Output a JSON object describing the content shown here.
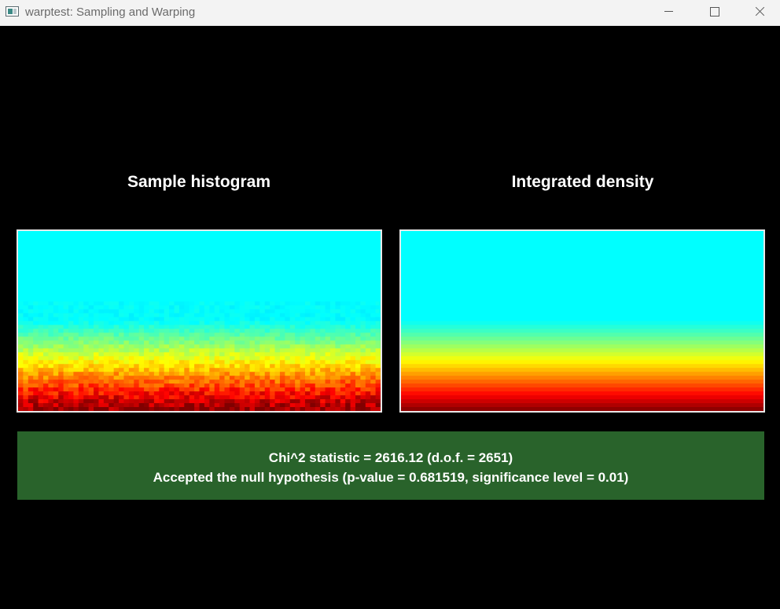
{
  "window": {
    "title": "warptest: Sampling and Warping",
    "controls": {
      "minimize_icon": "minimize-icon",
      "maximize_icon": "maximize-icon",
      "close_icon": "close-icon"
    }
  },
  "panels": {
    "left": {
      "title": "Sample histogram",
      "noisy": true
    },
    "right": {
      "title": "Integrated density",
      "noisy": false
    }
  },
  "colormap": {
    "low": "#0000ff",
    "stops": [
      "#0000ff",
      "#00ffff",
      "#00ff00",
      "#ffff00",
      "#ff0000"
    ]
  },
  "result": {
    "background": "#29632b",
    "line1": "Chi^2 statistic = 2616.12 (d.o.f. = 2651)",
    "line2": "Accepted the null hypothesis (p-value = 0.681519, significance level = 0.01)"
  }
}
